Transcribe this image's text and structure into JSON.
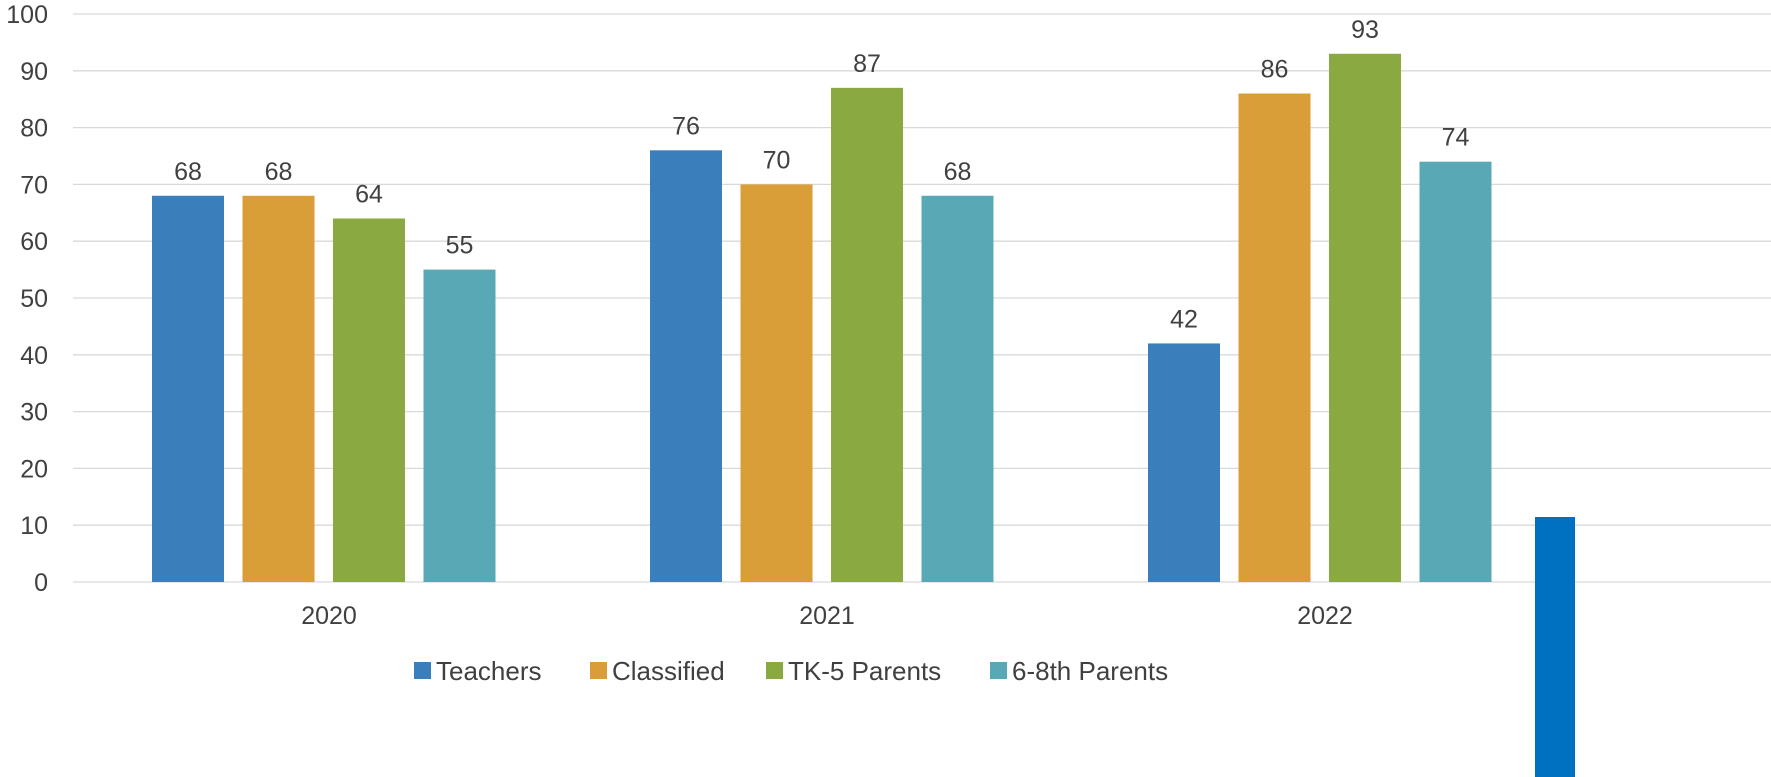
{
  "chart_data": {
    "type": "bar",
    "categories": [
      "2020",
      "2021",
      "2022"
    ],
    "series": [
      {
        "name": "Teachers",
        "values": [
          68,
          76,
          42
        ],
        "color": "#3a7ebb"
      },
      {
        "name": "Classified",
        "values": [
          68,
          70,
          86
        ],
        "color": "#d99e37"
      },
      {
        "name": "TK-5 Parents",
        "values": [
          64,
          87,
          93
        ],
        "color": "#8aaa41"
      },
      {
        "name": "6-8th Parents",
        "values": [
          55,
          68,
          74
        ],
        "color": "#58a8b5"
      }
    ],
    "ylim": [
      0,
      100
    ],
    "yticks": [
      0,
      10,
      20,
      30,
      40,
      50,
      60,
      70,
      80,
      90,
      100
    ],
    "grid": true,
    "data_labels": true,
    "legend_position": "bottom",
    "title": "",
    "xlabel": "",
    "ylabel": ""
  },
  "decoration": {
    "corner_block_color": "#0070c0"
  }
}
